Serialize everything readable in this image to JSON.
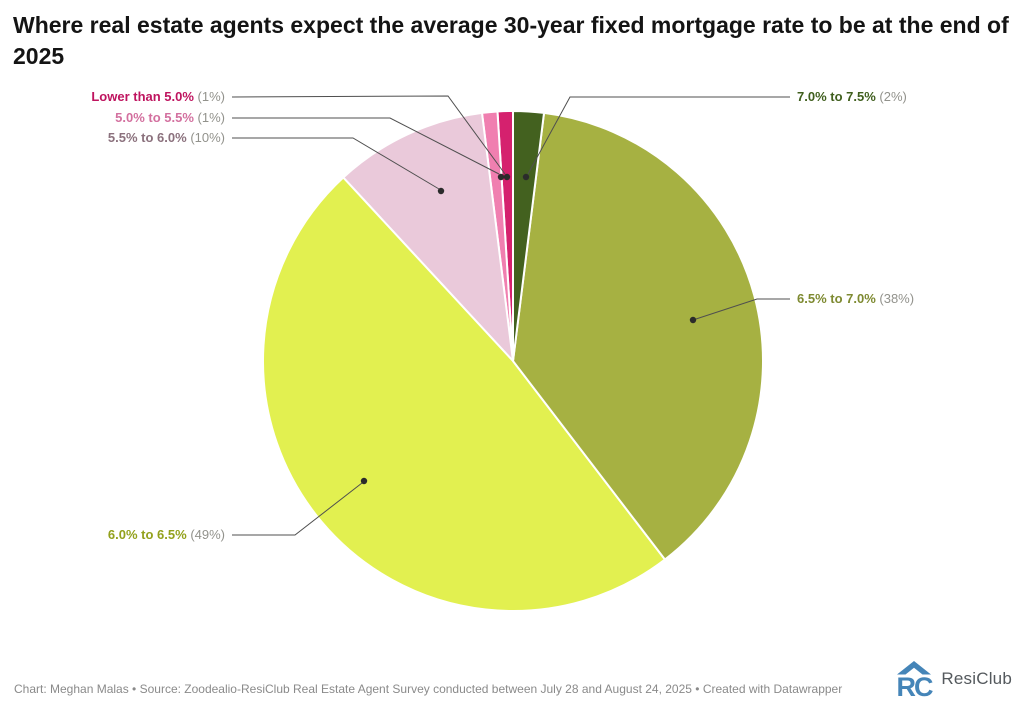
{
  "header": {
    "title": "Where real estate agents expect the average 30-year fixed mortgage rate to be at the end of 2025"
  },
  "chart_data": {
    "type": "pie",
    "title": "Where real estate agents expect the average 30-year fixed mortgage rate to be at the end of 2025",
    "start": "top",
    "direction": "counterclockwise",
    "legend_position": "callout-labels",
    "slices": [
      {
        "label": "Lower than 5.0%",
        "value": 1,
        "value_label": "(1%)",
        "color": "#d5216e",
        "label_color": "#bf145f"
      },
      {
        "label": "5.0% to 5.5%",
        "value": 1,
        "value_label": "(1%)",
        "color": "#f07fb0",
        "label_color": "#d3709f"
      },
      {
        "label": "5.5% to 6.0%",
        "value": 10,
        "value_label": "(10%)",
        "color": "#eac9da",
        "label_color": "#8b717d"
      },
      {
        "label": "6.0% to 6.5%",
        "value": 49,
        "value_label": "(49%)",
        "color": "#e2f050",
        "label_color": "#93a11c"
      },
      {
        "label": "6.5% to 7.0%",
        "value": 38,
        "value_label": "(38%)",
        "color": "#a6b142",
        "label_color": "#7e8a31"
      },
      {
        "label": "7.0% to 7.5%",
        "value": 2,
        "value_label": "(2%)",
        "color": "#43611f",
        "label_color": "#3f5e1d"
      }
    ],
    "value_text_color": "#92928c",
    "slice_gap_color": "#ffffff"
  },
  "footer": {
    "credit": "Chart: Meghan Malas • Source: Zoodealio-ResiClub Real Estate Agent Survey conducted between July 28 and August 24, 2025 • Created with Datawrapper"
  },
  "logo": {
    "name": "ResiClub",
    "icon": "resiclub-house-icon",
    "brand_color": "#4585b8"
  }
}
